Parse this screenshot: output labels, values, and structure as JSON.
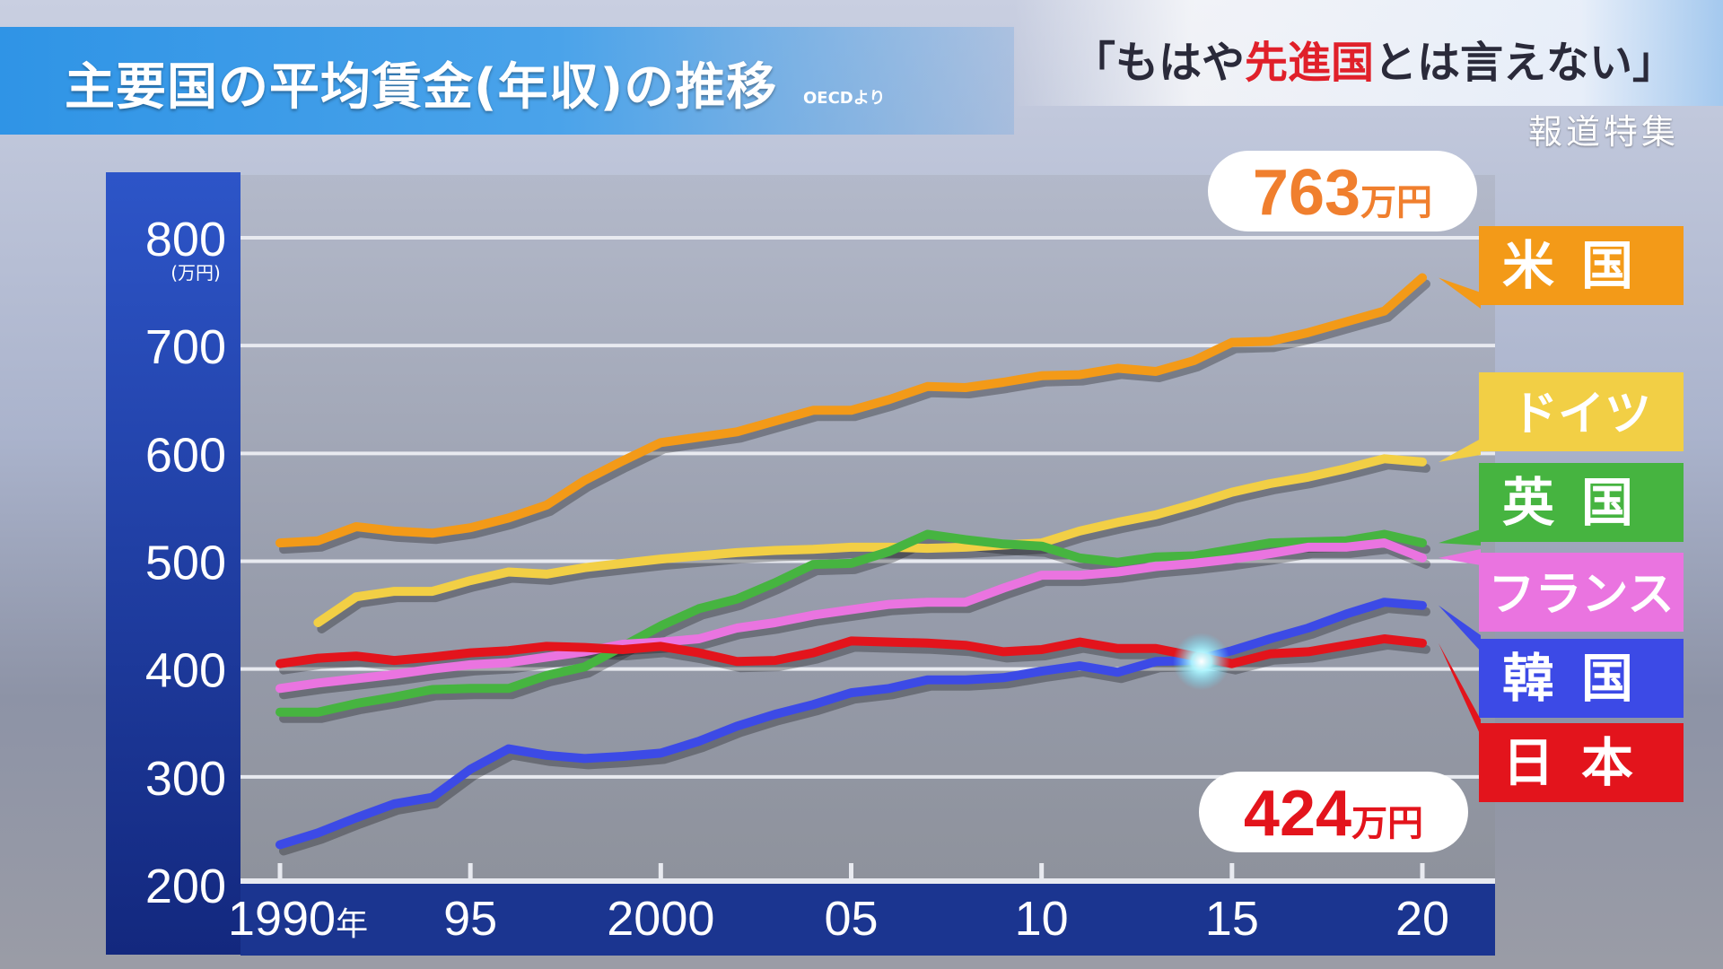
{
  "header": {
    "title": "主要国の平均賃金(年収)の推移",
    "source": "OECDより",
    "headline_open": "「もはや",
    "headline_red": "先進国",
    "headline_close": "とは言えない」",
    "program": "報道特集"
  },
  "callouts": {
    "us_value": "763",
    "jp_value": "424",
    "unit_label": "万円"
  },
  "colors": {
    "米国": "#f39a18",
    "ドイツ": "#f2cf45",
    "英国": "#46b440",
    "フランス": "#ea74e0",
    "韓国": "#3c4ae6",
    "日本": "#e3141c"
  },
  "chart_data": {
    "type": "line",
    "title": "主要国の平均賃金(年収)の推移",
    "ylabel": "(万円)",
    "ylim": [
      200,
      800
    ],
    "xlim": [
      1990,
      2020
    ],
    "y_ticks": [
      200,
      300,
      400,
      500,
      600,
      700,
      800
    ],
    "x_ticks": [
      {
        "value": 1990,
        "label": "1990",
        "suffix": "年"
      },
      {
        "value": 1995,
        "label": "95"
      },
      {
        "value": 2000,
        "label": "2000"
      },
      {
        "value": 2005,
        "label": "05"
      },
      {
        "value": 2010,
        "label": "10"
      },
      {
        "value": 2015,
        "label": "15"
      },
      {
        "value": 2020,
        "label": "20"
      }
    ],
    "legend_placement": "right",
    "series": [
      {
        "name": "米国",
        "color": "#f39a18",
        "x": [
          1990,
          1991,
          1992,
          1993,
          1994,
          1995,
          1996,
          1997,
          1998,
          1999,
          2000,
          2001,
          2002,
          2003,
          2004,
          2005,
          2006,
          2007,
          2008,
          2009,
          2010,
          2011,
          2012,
          2013,
          2014,
          2015,
          2016,
          2017,
          2018,
          2019,
          2020
        ],
        "values": [
          517,
          519,
          532,
          528,
          526,
          531,
          540,
          552,
          575,
          593,
          610,
          615,
          620,
          630,
          640,
          640,
          650,
          662,
          661,
          666,
          672,
          673,
          679,
          676,
          686,
          703,
          704,
          712,
          722,
          732,
          763
        ]
      },
      {
        "name": "ドイツ",
        "color": "#f2cf45",
        "x": [
          1991,
          1992,
          1993,
          1994,
          1995,
          1996,
          1997,
          1998,
          1999,
          2000,
          2001,
          2002,
          2003,
          2004,
          2005,
          2006,
          2007,
          2008,
          2009,
          2010,
          2011,
          2012,
          2013,
          2014,
          2015,
          2016,
          2017,
          2018,
          2019,
          2020
        ],
        "values": [
          443,
          467,
          472,
          472,
          482,
          490,
          488,
          494,
          498,
          502,
          505,
          508,
          510,
          511,
          513,
          513,
          512,
          513,
          515,
          517,
          528,
          536,
          543,
          553,
          564,
          572,
          578,
          586,
          595,
          592
        ]
      },
      {
        "name": "英国",
        "color": "#46b440",
        "x": [
          1990,
          1991,
          1992,
          1993,
          1994,
          1995,
          1996,
          1997,
          1998,
          1999,
          2000,
          2001,
          2002,
          2003,
          2004,
          2005,
          2006,
          2007,
          2008,
          2009,
          2010,
          2011,
          2012,
          2013,
          2014,
          2015,
          2016,
          2017,
          2018,
          2019,
          2020
        ],
        "values": [
          360,
          360,
          368,
          374,
          381,
          382,
          382,
          394,
          402,
          421,
          440,
          456,
          465,
          480,
          497,
          498,
          509,
          525,
          520,
          516,
          514,
          503,
          499,
          504,
          505,
          511,
          517,
          518,
          519,
          525,
          517
        ]
      },
      {
        "name": "フランス",
        "color": "#ea74e0",
        "x": [
          1990,
          1991,
          1992,
          1993,
          1994,
          1995,
          1996,
          1997,
          1998,
          1999,
          2000,
          2001,
          2002,
          2003,
          2004,
          2005,
          2006,
          2007,
          2008,
          2009,
          2010,
          2011,
          2012,
          2013,
          2014,
          2015,
          2016,
          2017,
          2018,
          2019,
          2020
        ],
        "values": [
          382,
          387,
          391,
          395,
          400,
          404,
          406,
          411,
          416,
          423,
          425,
          428,
          438,
          443,
          450,
          455,
          460,
          462,
          462,
          475,
          487,
          487,
          490,
          495,
          498,
          502,
          507,
          513,
          513,
          517,
          503
        ]
      },
      {
        "name": "韓国",
        "color": "#3c4ae6",
        "x": [
          1990,
          1991,
          1992,
          1993,
          1994,
          1995,
          1996,
          1997,
          1998,
          1999,
          2000,
          2001,
          2002,
          2003,
          2004,
          2005,
          2006,
          2007,
          2008,
          2009,
          2010,
          2011,
          2012,
          2013,
          2014,
          2015,
          2016,
          2017,
          2018,
          2019,
          2020
        ],
        "values": [
          237,
          248,
          262,
          275,
          281,
          307,
          326,
          320,
          317,
          319,
          322,
          333,
          347,
          358,
          367,
          378,
          382,
          390,
          390,
          392,
          398,
          403,
          397,
          407,
          408,
          417,
          428,
          438,
          451,
          462,
          459
        ]
      },
      {
        "name": "日本",
        "color": "#e3141c",
        "x": [
          1990,
          1991,
          1992,
          1993,
          1994,
          1995,
          1996,
          1997,
          1998,
          1999,
          2000,
          2001,
          2002,
          2003,
          2004,
          2005,
          2006,
          2007,
          2008,
          2009,
          2010,
          2011,
          2012,
          2013,
          2014,
          2015,
          2016,
          2017,
          2018,
          2019,
          2020
        ],
        "values": [
          405,
          410,
          412,
          408,
          411,
          415,
          417,
          421,
          420,
          418,
          421,
          415,
          407,
          408,
          415,
          426,
          425,
          424,
          422,
          416,
          418,
          425,
          419,
          419,
          412,
          405,
          414,
          416,
          422,
          428,
          424
        ]
      }
    ]
  }
}
